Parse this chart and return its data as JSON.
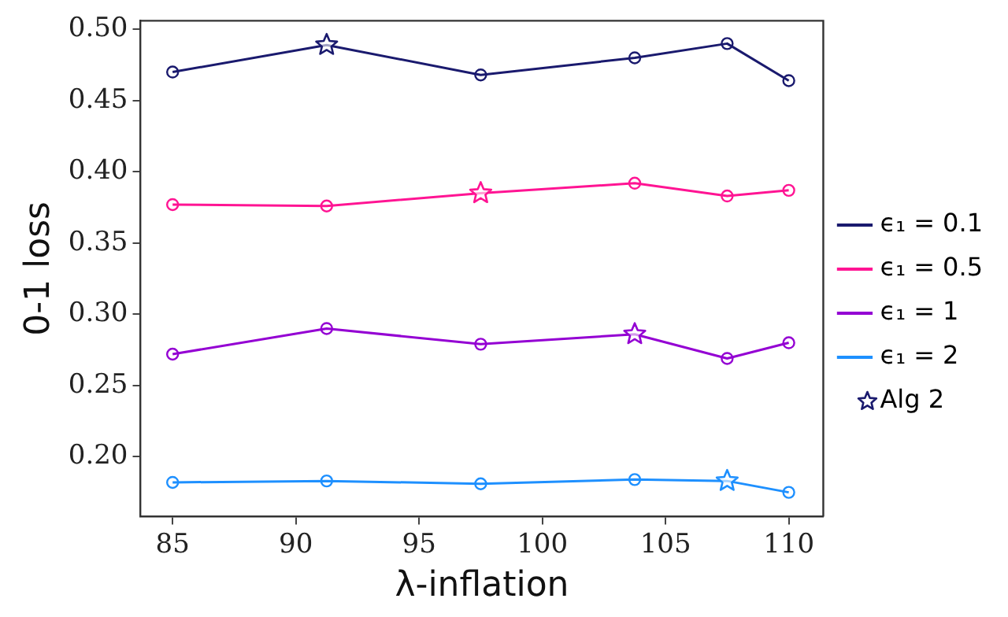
{
  "chart_data": {
    "type": "line",
    "xlabel": "λ-inflation",
    "ylabel": "0-1 loss",
    "x": [
      85,
      91.25,
      97.5,
      103.75,
      107.5,
      110
    ],
    "series": [
      {
        "name": "ϵ₁ = 0.1",
        "color": "#1a1a6e",
        "values": [
          0.47,
          0.489,
          0.468,
          0.48,
          0.49,
          0.464
        ]
      },
      {
        "name": "ϵ₁ = 0.5",
        "color": "#ff1493",
        "values": [
          0.377,
          0.376,
          0.385,
          0.392,
          0.383,
          0.387
        ]
      },
      {
        "name": "ϵ₁ = 1",
        "color": "#9400d3",
        "values": [
          0.272,
          0.29,
          0.279,
          0.286,
          0.269,
          0.28
        ]
      },
      {
        "name": "ϵ₁ = 2",
        "color": "#1e90ff",
        "values": [
          0.182,
          0.183,
          0.181,
          0.184,
          0.183,
          0.175
        ]
      },
      {
        "name": "Alg 2",
        "type": "scatter",
        "marker": "star",
        "x": [
          91.25,
          97.5,
          103.75,
          107.5
        ],
        "values": [
          0.489,
          0.385,
          0.286,
          0.183
        ],
        "colors": [
          "#1a1a6e",
          "#ff1493",
          "#9400d3",
          "#1e90ff"
        ]
      }
    ],
    "marker": "circle",
    "line_style": "solid",
    "xlim": [
      83.7,
      111.4
    ],
    "xticks": [
      85,
      90,
      95,
      100,
      105,
      110
    ],
    "ylim": [
      0.158,
      0.506
    ],
    "yticks": [
      {
        "value": 0.2,
        "label": "0.20"
      },
      {
        "value": 0.25,
        "label": "0.25"
      },
      {
        "value": 0.3,
        "label": "0.30"
      },
      {
        "value": 0.35,
        "label": "0.35"
      },
      {
        "value": 0.4,
        "label": "0.40"
      },
      {
        "value": 0.45,
        "label": "0.45"
      },
      {
        "value": 0.5,
        "label": "0.50"
      }
    ],
    "grid": false,
    "legend": "right"
  }
}
